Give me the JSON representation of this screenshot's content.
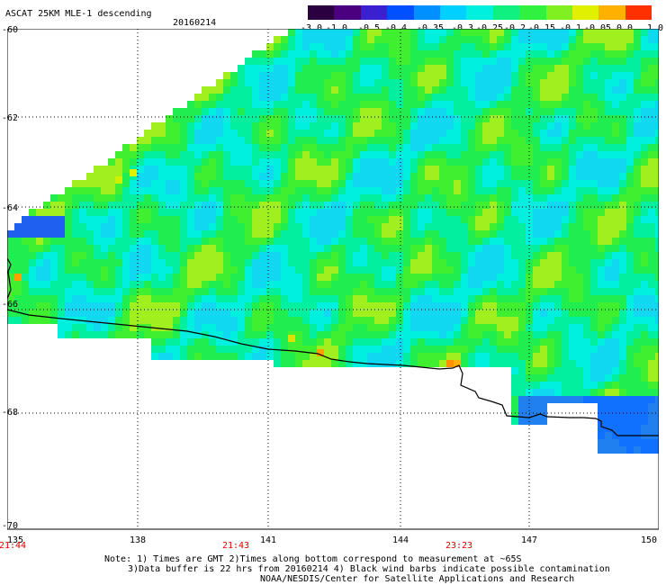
{
  "header": {
    "title": "ASCAT 25KM MLE-1 descending",
    "date": "20160214"
  },
  "colorbar": {
    "labels": [
      "-3.0",
      "-1.0",
      "-0.5",
      "-0.4",
      "-0.35",
      "-0.3",
      "-0.25",
      "-0.2",
      "-0.15",
      "-0.1",
      "-0.05",
      "0.0",
      "1.0"
    ],
    "colors": [
      "#2a0040",
      "#4b0080",
      "#3a20d0",
      "#0050ff",
      "#0090ff",
      "#00d0ff",
      "#00f0e0",
      "#10f080",
      "#30f040",
      "#80f020",
      "#e0f000",
      "#ffb000",
      "#ff3000"
    ]
  },
  "axes": {
    "lat_labels": [
      "-60",
      "-62",
      "-64",
      "-66",
      "-68",
      "-70"
    ],
    "lon_labels": [
      "135",
      "138",
      "141",
      "144",
      "147",
      "150"
    ],
    "time_labels": [
      "21:44",
      "21:43",
      "23:23"
    ]
  },
  "notes": {
    "line1": "Note: 1) Times are GMT 2)Times along bottom correspond to measurement at ~65S",
    "line2": "3)Data buffer is 22 hrs from 20160214 4) Black wind barbs indicate possible contamination",
    "line3": "NOAA/NESDIS/Center for Satellite Applications and Research"
  }
}
